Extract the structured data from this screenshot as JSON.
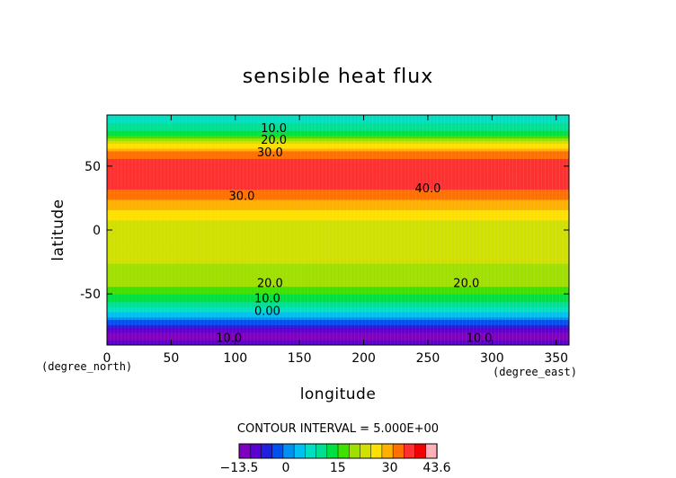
{
  "chart_data": {
    "type": "heatmap",
    "title": "sensible heat flux",
    "xlabel": "longitude",
    "ylabel": "latitude",
    "x_unit": "(degree_east)",
    "y_unit": "(degree_north)",
    "xlim": [
      0,
      360
    ],
    "ylim": [
      -90,
      90
    ],
    "x_ticks": [
      0,
      50,
      100,
      150,
      200,
      250,
      300,
      350
    ],
    "y_ticks": [
      -50,
      0,
      50
    ],
    "contour_interval_text": "CONTOUR INTERVAL = 5.000E+00",
    "colorbar": {
      "min": -13.5,
      "max": 43.6,
      "tick_labels": [
        "-13.5",
        "0",
        "15",
        "30",
        "43.6"
      ],
      "colors": [
        "#8000c0",
        "#5a00d0",
        "#2020e0",
        "#0050f0",
        "#0090f0",
        "#00c0f0",
        "#00e0c0",
        "#00e090",
        "#00e040",
        "#40e000",
        "#a0e000",
        "#d0e000",
        "#ffe000",
        "#ffb000",
        "#ff7000",
        "#ff3030",
        "#f00000",
        "#ffb0b8"
      ]
    },
    "zonal_mean_profile": {
      "lat": [
        -90,
        -80,
        -72,
        -65,
        -60,
        -55,
        -50,
        -45,
        -40,
        -35,
        -30,
        -20,
        -10,
        0,
        10,
        20,
        30,
        40,
        50,
        60,
        65,
        70,
        75,
        80,
        85,
        90
      ],
      "value": [
        -10,
        -11,
        -2,
        5,
        9,
        13,
        15,
        18,
        19,
        20,
        21,
        22,
        22,
        23,
        25,
        29,
        33,
        37,
        37,
        32,
        27,
        21,
        15,
        11,
        8,
        6
      ]
    },
    "contour_labels": [
      {
        "text": "10.0",
        "lon": 130,
        "lat": 80
      },
      {
        "text": "20.0",
        "lon": 130,
        "lat": 71
      },
      {
        "text": "30.0",
        "lon": 127,
        "lat": 61
      },
      {
        "text": "30.0",
        "lon": 105,
        "lat": 27
      },
      {
        "text": "40.0",
        "lon": 250,
        "lat": 33
      },
      {
        "text": "20.0",
        "lon": 127,
        "lat": -41
      },
      {
        "text": "20.0",
        "lon": 280,
        "lat": -41
      },
      {
        "text": "10.0",
        "lon": 125,
        "lat": -53
      },
      {
        "text": "0.00",
        "lon": 125,
        "lat": -63
      },
      {
        "text": "10.0",
        "lon": 95,
        "lat": -84
      },
      {
        "text": "10.0",
        "lon": 290,
        "lat": -84
      }
    ]
  }
}
